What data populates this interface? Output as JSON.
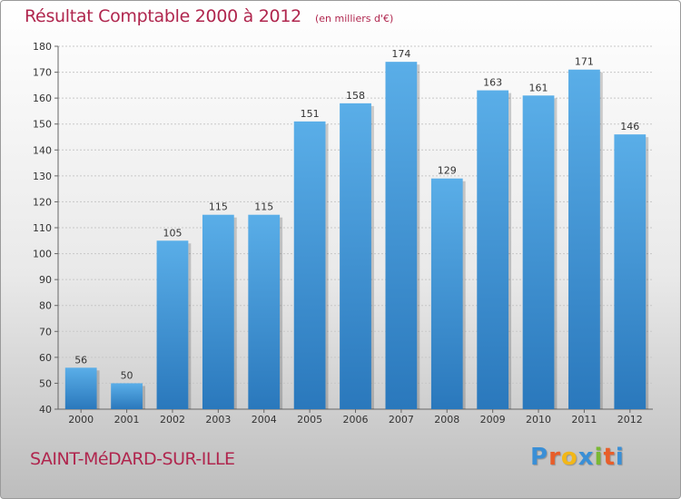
{
  "header": {
    "title": "Résultat Comptable 2000 à 2012",
    "subtitle": "(en milliers d'€)"
  },
  "commune": "SAINT-MéDARD-SUR-ILLE",
  "brand": {
    "letters": [
      "P",
      "r",
      "o",
      "x",
      "i",
      "t",
      "i"
    ],
    "colors": [
      "#3a8fd6",
      "#e85e2a",
      "#f2b718",
      "#3a8fd6",
      "#7ab834",
      "#e85e2a",
      "#3a8fd6"
    ]
  },
  "chart_data": {
    "type": "bar",
    "categories": [
      "2000",
      "2001",
      "2002",
      "2003",
      "2004",
      "2005",
      "2006",
      "2007",
      "2008",
      "2009",
      "2010",
      "2011",
      "2012"
    ],
    "values": [
      56,
      50,
      105,
      115,
      115,
      151,
      158,
      174,
      129,
      163,
      161,
      171,
      146
    ],
    "ylim": [
      40,
      180
    ],
    "yticks": [
      40,
      50,
      60,
      70,
      80,
      90,
      100,
      110,
      120,
      130,
      140,
      150,
      160,
      170,
      180
    ],
    "grid": true,
    "bar_color_top": "#5aaee8",
    "bar_color_bottom": "#2a78bc"
  }
}
